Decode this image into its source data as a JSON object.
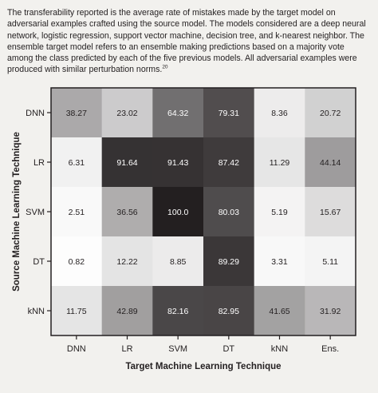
{
  "caption": {
    "text": "The transferability reported is the average rate of mistakes made by the target model on adversarial examples crafted using the source model. The models considered are a deep neural network, logistic regression, support vector machine, decision tree, and k-nearest neighbor. The ensemble target model refers to an ensemble making predictions based on a majority vote among the class predicted by each of the five previous models. All adversarial examples were produced with similar perturbation norms.",
    "footnote_ref": "20"
  },
  "chart_data": {
    "type": "heatmap",
    "title": "",
    "xlabel": "Target Machine Learning Technique",
    "ylabel": "Source Machine Learning Technique",
    "x_categories": [
      "DNN",
      "LR",
      "SVM",
      "DT",
      "kNN",
      "Ens."
    ],
    "y_categories": [
      "DNN",
      "LR",
      "SVM",
      "DT",
      "kNN"
    ],
    "values": [
      [
        38.27,
        23.02,
        64.32,
        79.31,
        8.36,
        20.72
      ],
      [
        6.31,
        91.64,
        91.43,
        87.42,
        11.29,
        44.14
      ],
      [
        2.51,
        36.56,
        100.0,
        80.03,
        5.19,
        15.67
      ],
      [
        0.82,
        12.22,
        8.85,
        89.29,
        3.31,
        5.11
      ],
      [
        11.75,
        42.89,
        82.16,
        82.95,
        41.65,
        31.92
      ]
    ],
    "value_labels": [
      [
        "38.27",
        "23.02",
        "64.32",
        "79.31",
        "8.36",
        "20.72"
      ],
      [
        "6.31",
        "91.64",
        "91.43",
        "87.42",
        "11.29",
        "44.14"
      ],
      [
        "2.51",
        "36.56",
        "100.0",
        "80.03",
        "5.19",
        "15.67"
      ],
      [
        "0.82",
        "12.22",
        "8.85",
        "89.29",
        "3.31",
        "5.11"
      ],
      [
        "11.75",
        "42.89",
        "82.16",
        "82.95",
        "41.65",
        "31.92"
      ]
    ],
    "value_range": [
      0,
      100
    ],
    "colormap": "greyscale: low values light, high values dark",
    "colors": {
      "low": "#ffffff",
      "high": "#231f20",
      "text_dark": "#231f20",
      "text_light": "#ffffff",
      "background": "#f2f1ee"
    }
  }
}
